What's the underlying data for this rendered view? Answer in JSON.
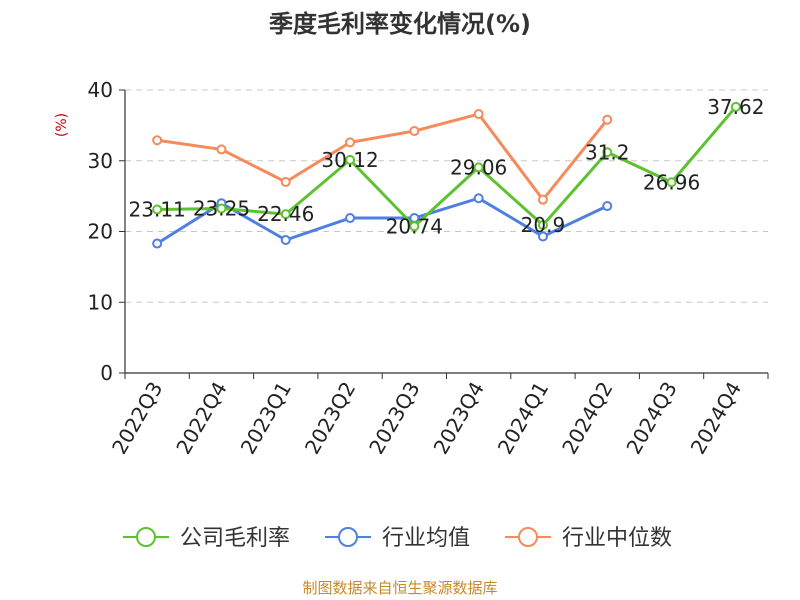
{
  "chart_data": {
    "type": "line",
    "title": "季度毛利率变化情况(%)",
    "ylabel": "(%)",
    "xlabel": "",
    "ylim": [
      0,
      40
    ],
    "yticks": [
      0,
      10,
      20,
      30,
      40
    ],
    "grid": true,
    "legend_position": "bottom",
    "categories": [
      "2022Q3",
      "2022Q4",
      "2023Q1",
      "2023Q2",
      "2023Q3",
      "2023Q4",
      "2024Q1",
      "2024Q2",
      "2024Q3",
      "2024Q4"
    ],
    "series": [
      {
        "name": "公司毛利率",
        "color": "#5ec130",
        "values": [
          23.11,
          23.25,
          22.46,
          30.12,
          20.74,
          29.06,
          20.9,
          31.2,
          26.96,
          37.62
        ],
        "show_labels": true
      },
      {
        "name": "行业均值",
        "color": "#4f7fe0",
        "values": [
          18.3,
          24.0,
          18.8,
          21.9,
          21.9,
          24.7,
          19.3,
          23.6,
          null,
          null
        ],
        "show_labels": false
      },
      {
        "name": "行业中位数",
        "color": "#f58a5a",
        "values": [
          32.9,
          31.6,
          27.0,
          32.6,
          34.2,
          36.6,
          24.5,
          35.8,
          null,
          null
        ],
        "show_labels": false
      }
    ],
    "data_labels": [
      "23.11",
      "23.25",
      "22.46",
      "30.12",
      "20.74",
      "29.06",
      "20.9",
      "31.2",
      "26.96",
      "37.62"
    ]
  },
  "source_text": "制图数据来自恒生聚源数据库"
}
